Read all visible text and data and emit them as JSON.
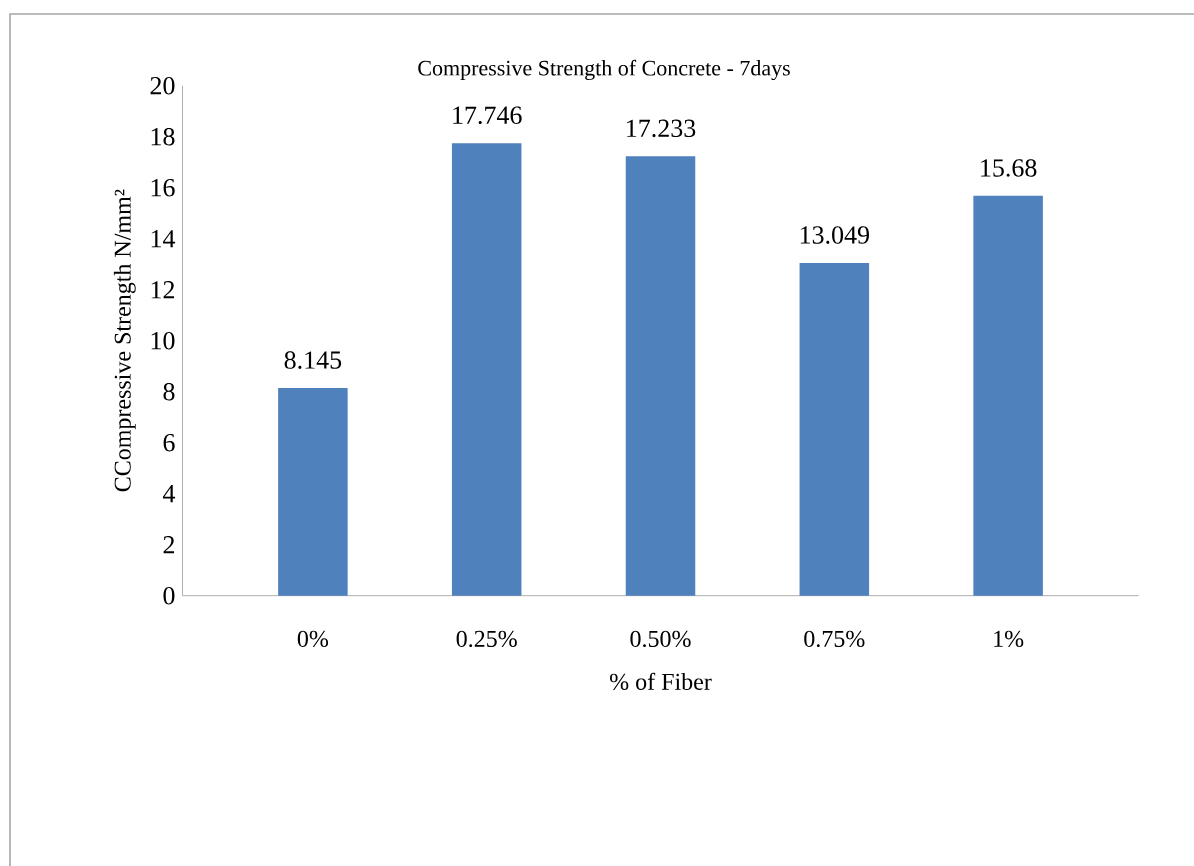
{
  "chart_data": {
    "type": "bar",
    "title": "Compressive Strength of Concrete - 7days",
    "xlabel": "% of Fiber",
    "ylabel": "CCompressive  Strength N/mm²",
    "categories": [
      "0%",
      "0.25%",
      "0.50%",
      "0.75%",
      "1%"
    ],
    "values": [
      8.145,
      17.746,
      17.233,
      13.049,
      15.68
    ],
    "color": "#4f81bd",
    "data_labels": true,
    "grid": false,
    "ylim": [
      0,
      20
    ],
    "yticks": [
      0,
      2,
      4,
      6,
      8,
      10,
      12,
      14,
      16,
      18,
      20
    ]
  }
}
